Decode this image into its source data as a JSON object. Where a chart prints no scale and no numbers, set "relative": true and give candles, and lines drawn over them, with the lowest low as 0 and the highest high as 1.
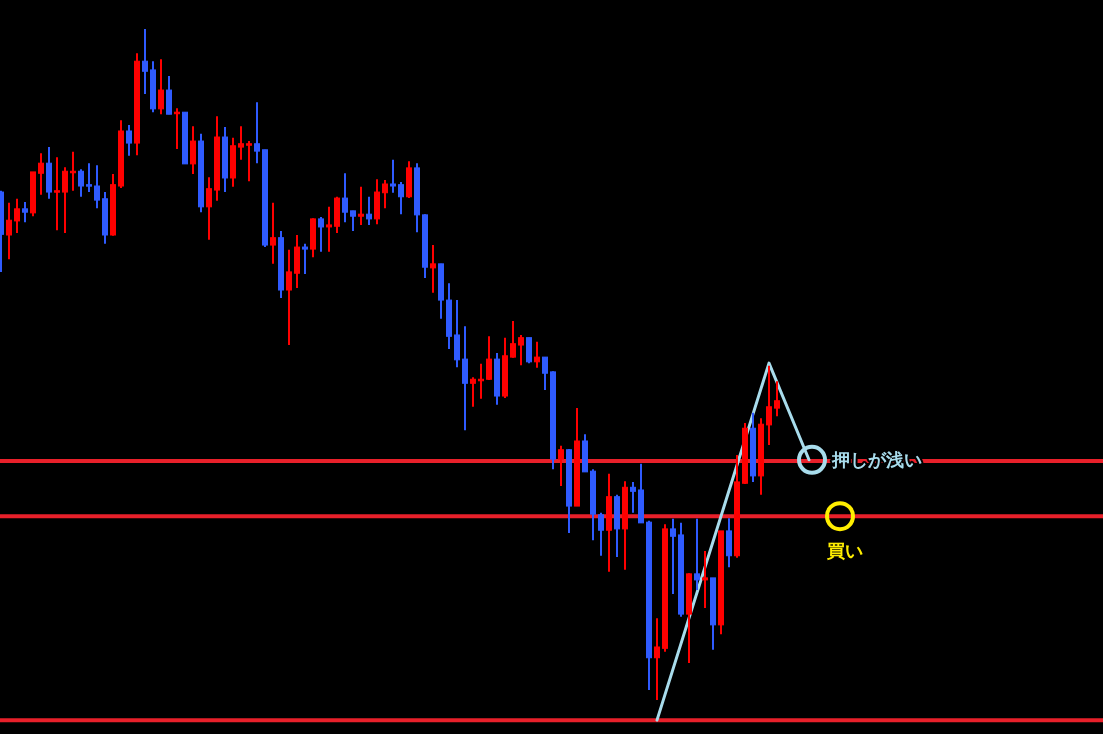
{
  "chart_data": {
    "type": "candlestick",
    "relative": true,
    "categories": [
      null,
      null,
      null,
      null,
      null,
      null,
      null,
      null,
      null,
      null,
      null,
      null,
      null,
      null,
      null,
      null,
      null,
      null,
      null,
      null,
      null,
      null,
      null,
      null,
      null,
      null,
      null,
      null,
      null,
      null,
      null,
      null,
      null,
      null,
      null,
      null,
      null,
      null,
      null,
      null,
      null,
      null,
      null,
      null,
      null,
      null,
      null,
      null,
      null,
      null,
      null,
      null,
      null,
      null,
      null,
      null,
      null,
      null,
      null,
      null,
      null,
      null,
      null,
      null,
      null,
      null,
      null,
      null,
      null,
      null,
      null,
      null,
      null,
      null,
      null,
      null,
      null,
      null,
      null,
      null,
      null,
      null,
      null,
      null,
      null,
      null,
      null,
      null,
      null,
      null,
      null,
      null,
      null,
      null,
      null,
      null,
      null,
      null,
      null,
      null,
      null,
      null
    ],
    "ohlc": [
      [
        0.757,
        0.759,
        0.638,
        0.694
      ],
      [
        0.693,
        0.741,
        0.657,
        0.715
      ],
      [
        0.714,
        0.747,
        0.696,
        0.732
      ],
      [
        0.732,
        0.742,
        0.712,
        0.727
      ],
      [
        0.726,
        0.787,
        0.721,
        0.787
      ],
      [
        0.785,
        0.815,
        0.753,
        0.8
      ],
      [
        0.8,
        0.824,
        0.747,
        0.757
      ],
      [
        0.757,
        0.809,
        0.7,
        0.759
      ],
      [
        0.757,
        0.794,
        0.696,
        0.788
      ],
      [
        0.787,
        0.817,
        0.759,
        0.788
      ],
      [
        0.788,
        0.791,
        0.75,
        0.766
      ],
      [
        0.768,
        0.8,
        0.757,
        0.766
      ],
      [
        0.766,
        0.797,
        0.733,
        0.745
      ],
      [
        0.747,
        0.757,
        0.68,
        0.693
      ],
      [
        0.693,
        0.784,
        0.692,
        0.768
      ],
      [
        0.766,
        0.864,
        0.763,
        0.848
      ],
      [
        0.848,
        0.857,
        0.811,
        0.83
      ],
      [
        0.83,
        0.964,
        0.812,
        0.952
      ],
      [
        0.952,
        1,
        0.903,
        0.937
      ],
      [
        0.939,
        0.952,
        0.876,
        0.881
      ],
      [
        0.881,
        0.955,
        0.873,
        0.909
      ],
      [
        0.909,
        0.93,
        0.873,
        0.873
      ],
      [
        0.875,
        0.882,
        0.821,
        0.876
      ],
      [
        0.876,
        0.876,
        0.799,
        0.799
      ],
      [
        0.799,
        0.855,
        0.784,
        0.833
      ],
      [
        0.833,
        0.844,
        0.727,
        0.735
      ],
      [
        0.735,
        0.779,
        0.686,
        0.762
      ],
      [
        0.76,
        0.87,
        0.744,
        0.839
      ],
      [
        0.839,
        0.854,
        0.757,
        0.778
      ],
      [
        0.778,
        0.838,
        0.765,
        0.826
      ],
      [
        0.824,
        0.855,
        0.805,
        0.829
      ],
      [
        0.827,
        0.833,
        0.773,
        0.829
      ],
      [
        0.829,
        0.891,
        0.8,
        0.818
      ],
      [
        0.82,
        0.82,
        0.675,
        0.678
      ],
      [
        0.678,
        0.741,
        0.65,
        0.689
      ],
      [
        0.689,
        0.699,
        0.599,
        0.611
      ],
      [
        0.611,
        0.671,
        0.529,
        0.638
      ],
      [
        0.636,
        0.693,
        0.614,
        0.675
      ],
      [
        0.675,
        0.68,
        0.635,
        0.672
      ],
      [
        0.672,
        0.718,
        0.66,
        0.717
      ],
      [
        0.717,
        0.72,
        0.668,
        0.705
      ],
      [
        0.705,
        0.735,
        0.668,
        0.708
      ],
      [
        0.706,
        0.75,
        0.696,
        0.748
      ],
      [
        0.748,
        0.785,
        0.712,
        0.727
      ],
      [
        0.729,
        0.729,
        0.699,
        0.721
      ],
      [
        0.721,
        0.765,
        0.708,
        0.724
      ],
      [
        0.724,
        0.75,
        0.708,
        0.717
      ],
      [
        0.717,
        0.776,
        0.709,
        0.757
      ],
      [
        0.756,
        0.775,
        0.733,
        0.769
      ],
      [
        0.769,
        0.805,
        0.756,
        0.766
      ],
      [
        0.768,
        0.772,
        0.724,
        0.75
      ],
      [
        0.75,
        0.803,
        0.748,
        0.793
      ],
      [
        0.793,
        0.8,
        0.697,
        0.723
      ],
      [
        0.723,
        0.724,
        0.629,
        0.645
      ],
      [
        0.644,
        0.678,
        0.607,
        0.65
      ],
      [
        0.65,
        0.65,
        0.568,
        0.596
      ],
      [
        0.596,
        0.621,
        0.523,
        0.542
      ],
      [
        0.544,
        0.596,
        0.496,
        0.507
      ],
      [
        0.508,
        0.557,
        0.402,
        0.472
      ],
      [
        0.472,
        0.481,
        0.437,
        0.478
      ],
      [
        0.477,
        0.501,
        0.449,
        0.478
      ],
      [
        0.478,
        0.542,
        0.477,
        0.508
      ],
      [
        0.508,
        0.517,
        0.44,
        0.453
      ],
      [
        0.453,
        0.54,
        0.45,
        0.513
      ],
      [
        0.511,
        0.565,
        0.51,
        0.531
      ],
      [
        0.529,
        0.544,
        0.499,
        0.54
      ],
      [
        0.54,
        0.54,
        0.502,
        0.504
      ],
      [
        0.504,
        0.534,
        0.495,
        0.511
      ],
      [
        0.511,
        0.511,
        0.462,
        0.487
      ],
      [
        0.489,
        0.49,
        0.344,
        0.359
      ],
      [
        0.359,
        0.379,
        0.319,
        0.373
      ],
      [
        0.373,
        0.374,
        0.249,
        0.289
      ],
      [
        0.289,
        0.435,
        0.289,
        0.386
      ],
      [
        0.386,
        0.396,
        0.34,
        0.34
      ],
      [
        0.341,
        0.344,
        0.238,
        0.277
      ],
      [
        0.276,
        0.279,
        0.215,
        0.253
      ],
      [
        0.253,
        0.337,
        0.191,
        0.303
      ],
      [
        0.303,
        0.306,
        0.213,
        0.255
      ],
      [
        0.255,
        0.326,
        0.194,
        0.317
      ],
      [
        0.317,
        0.325,
        0.279,
        0.311
      ],
      [
        0.313,
        0.352,
        0.264,
        0.264
      ],
      [
        0.265,
        0.267,
        0.015,
        0.063
      ],
      [
        0.063,
        0.122,
        0,
        0.079
      ],
      [
        0.077,
        0.262,
        0.072,
        0.255
      ],
      [
        0.255,
        0.27,
        0.158,
        0.244
      ],
      [
        0.246,
        0.264,
        0.124,
        0.128
      ],
      [
        0.128,
        0.189,
        0.055,
        0.188
      ],
      [
        0.188,
        0.27,
        0.164,
        0.179
      ],
      [
        0.179,
        0.222,
        0.137,
        0.182
      ],
      [
        0.182,
        0.182,
        0.075,
        0.112
      ],
      [
        0.112,
        0.252,
        0.098,
        0.252
      ],
      [
        0.252,
        0.271,
        0.198,
        0.215
      ],
      [
        0.215,
        0.365,
        0.212,
        0.325
      ],
      [
        0.323,
        0.413,
        0.322,
        0.405
      ],
      [
        0.405,
        0.428,
        0.325,
        0.334
      ],
      [
        0.334,
        0.42,
        0.306,
        0.411
      ],
      [
        0.41,
        0.498,
        0.38,
        0.437
      ],
      [
        0.435,
        0.475,
        0.423,
        0.446
      ],
      null,
      null,
      null,
      null
    ],
    "colors": [
      "#2f5bff",
      "#ff0000",
      "#ff0000",
      "#2f5bff",
      "#ff0000",
      "#ff0000",
      "#2f5bff",
      "#ff0000",
      "#ff0000",
      "#ff0000",
      "#2f5bff",
      "#2f5bff",
      "#2f5bff",
      "#2f5bff",
      "#ff0000",
      "#ff0000",
      "#2f5bff",
      "#ff0000",
      "#2f5bff",
      "#2f5bff",
      "#ff0000",
      "#2f5bff",
      "#ff0000",
      "#2f5bff",
      "#ff0000",
      "#2f5bff",
      "#ff0000",
      "#ff0000",
      "#2f5bff",
      "#ff0000",
      "#ff0000",
      "#ff0000",
      "#2f5bff",
      "#2f5bff",
      "#ff0000",
      "#2f5bff",
      "#ff0000",
      "#ff0000",
      "#2f5bff",
      "#ff0000",
      "#2f5bff",
      "#ff0000",
      "#ff0000",
      "#2f5bff",
      "#2f5bff",
      "#ff0000",
      "#2f5bff",
      "#ff0000",
      "#ff0000",
      "#2f5bff",
      "#2f5bff",
      "#ff0000",
      "#2f5bff",
      "#2f5bff",
      "#ff0000",
      "#2f5bff",
      "#2f5bff",
      "#2f5bff",
      "#2f5bff",
      "#ff0000",
      "#ff0000",
      "#ff0000",
      "#2f5bff",
      "#ff0000",
      "#ff0000",
      "#ff0000",
      "#2f5bff",
      "#ff0000",
      "#2f5bff",
      "#2f5bff",
      "#ff0000",
      "#2f5bff",
      "#ff0000",
      "#2f5bff",
      "#2f5bff",
      "#2f5bff",
      "#ff0000",
      "#2f5bff",
      "#ff0000",
      "#2f5bff",
      "#2f5bff",
      "#2f5bff",
      "#ff0000",
      "#ff0000",
      "#2f5bff",
      "#2f5bff",
      "#ff0000",
      "#2f5bff",
      "#ff0000",
      "#2f5bff",
      "#ff0000",
      "#2f5bff",
      "#ff0000",
      "#ff0000",
      "#2f5bff",
      "#ff0000",
      "#ff0000",
      "#ff0000",
      null,
      null,
      null,
      null
    ],
    "series": [
      {
        "type": "line",
        "color": "#a8dcec",
        "values": [
          null,
          null,
          null,
          null,
          null,
          null,
          null,
          null,
          null,
          null,
          null,
          null,
          null,
          null,
          null,
          null,
          null,
          null,
          null,
          null,
          null,
          null,
          null,
          null,
          null,
          null,
          null,
          null,
          null,
          null,
          null,
          null,
          null,
          null,
          null,
          null,
          null,
          null,
          null,
          null,
          null,
          null,
          null,
          null,
          null,
          null,
          null,
          null,
          null,
          null,
          null,
          null,
          null,
          null,
          null,
          null,
          null,
          null,
          null,
          null,
          null,
          null,
          null,
          null,
          null,
          null,
          null,
          null,
          null,
          null,
          null,
          null,
          null,
          null,
          null,
          null,
          null,
          null,
          null,
          null,
          null,
          null,
          -0.03,
          null,
          null,
          null,
          null,
          null,
          null,
          null,
          null,
          null,
          null,
          null,
          null,
          null,
          0.502,
          null,
          null,
          null,
          null,
          0.358
        ]
      }
    ],
    "ref_lines": [
      {
        "axis": "y",
        "value": 0.356,
        "color": "#e8202a"
      },
      {
        "axis": "y",
        "value": 0.274,
        "color": "#e8202a"
      },
      {
        "axis": "y",
        "value": -0.03,
        "color": "#e8202a"
      }
    ],
    "annotations": [
      {
        "text": "押しが浅い",
        "y": 0.358
      },
      {
        "text": "買い",
        "y": 0.274
      }
    ]
  }
}
